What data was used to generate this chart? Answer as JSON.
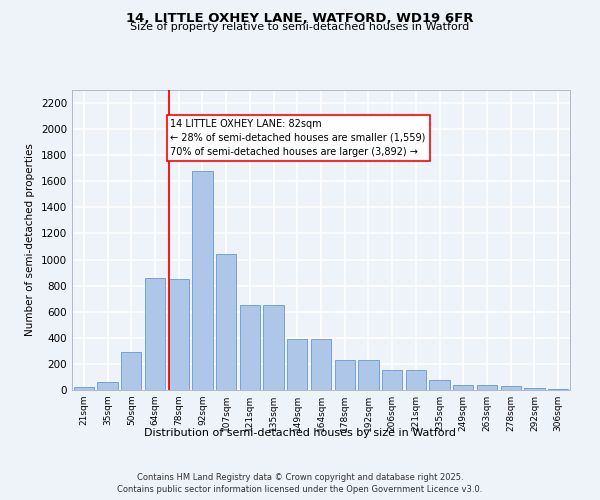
{
  "title_line1": "14, LITTLE OXHEY LANE, WATFORD, WD19 6FR",
  "title_line2": "Size of property relative to semi-detached houses in Watford",
  "xlabel": "Distribution of semi-detached houses by size in Watford",
  "ylabel": "Number of semi-detached properties",
  "categories": [
    "21sqm",
    "35sqm",
    "50sqm",
    "64sqm",
    "78sqm",
    "92sqm",
    "107sqm",
    "121sqm",
    "135sqm",
    "149sqm",
    "164sqm",
    "178sqm",
    "192sqm",
    "206sqm",
    "221sqm",
    "235sqm",
    "249sqm",
    "263sqm",
    "278sqm",
    "292sqm",
    "306sqm"
  ],
  "values": [
    20,
    60,
    290,
    860,
    850,
    1680,
    1040,
    650,
    650,
    390,
    390,
    230,
    230,
    155,
    155,
    75,
    40,
    40,
    30,
    15,
    5
  ],
  "bar_color": "#aec6e8",
  "bar_edge_color": "#6699cc",
  "vline_color": "red",
  "annotation_text": "14 LITTLE OXHEY LANE: 82sqm\n← 28% of semi-detached houses are smaller (1,559)\n70% of semi-detached houses are larger (3,892) →",
  "annotation_box_color": "white",
  "annotation_box_edge": "red",
  "ylim": [
    0,
    2300
  ],
  "yticks": [
    0,
    200,
    400,
    600,
    800,
    1000,
    1200,
    1400,
    1600,
    1800,
    2000,
    2200
  ],
  "background_color": "#eef2f9",
  "grid_color": "white",
  "footer_line1": "Contains HM Land Registry data © Crown copyright and database right 2025.",
  "footer_line2": "Contains public sector information licensed under the Open Government Licence v3.0."
}
